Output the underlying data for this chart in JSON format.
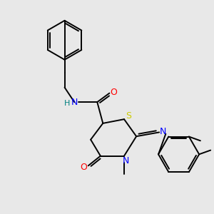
{
  "background_color": "#e8e8e8",
  "atom_colors": {
    "C": "#000000",
    "N": "#0000ff",
    "O": "#ff0000",
    "S": "#cccc00",
    "H": "#008080"
  },
  "bond_color": "#000000",
  "figsize": [
    3.0,
    3.0
  ],
  "dpi": 100,
  "xlim": [
    30,
    290
  ],
  "ylim": [
    20,
    280
  ]
}
